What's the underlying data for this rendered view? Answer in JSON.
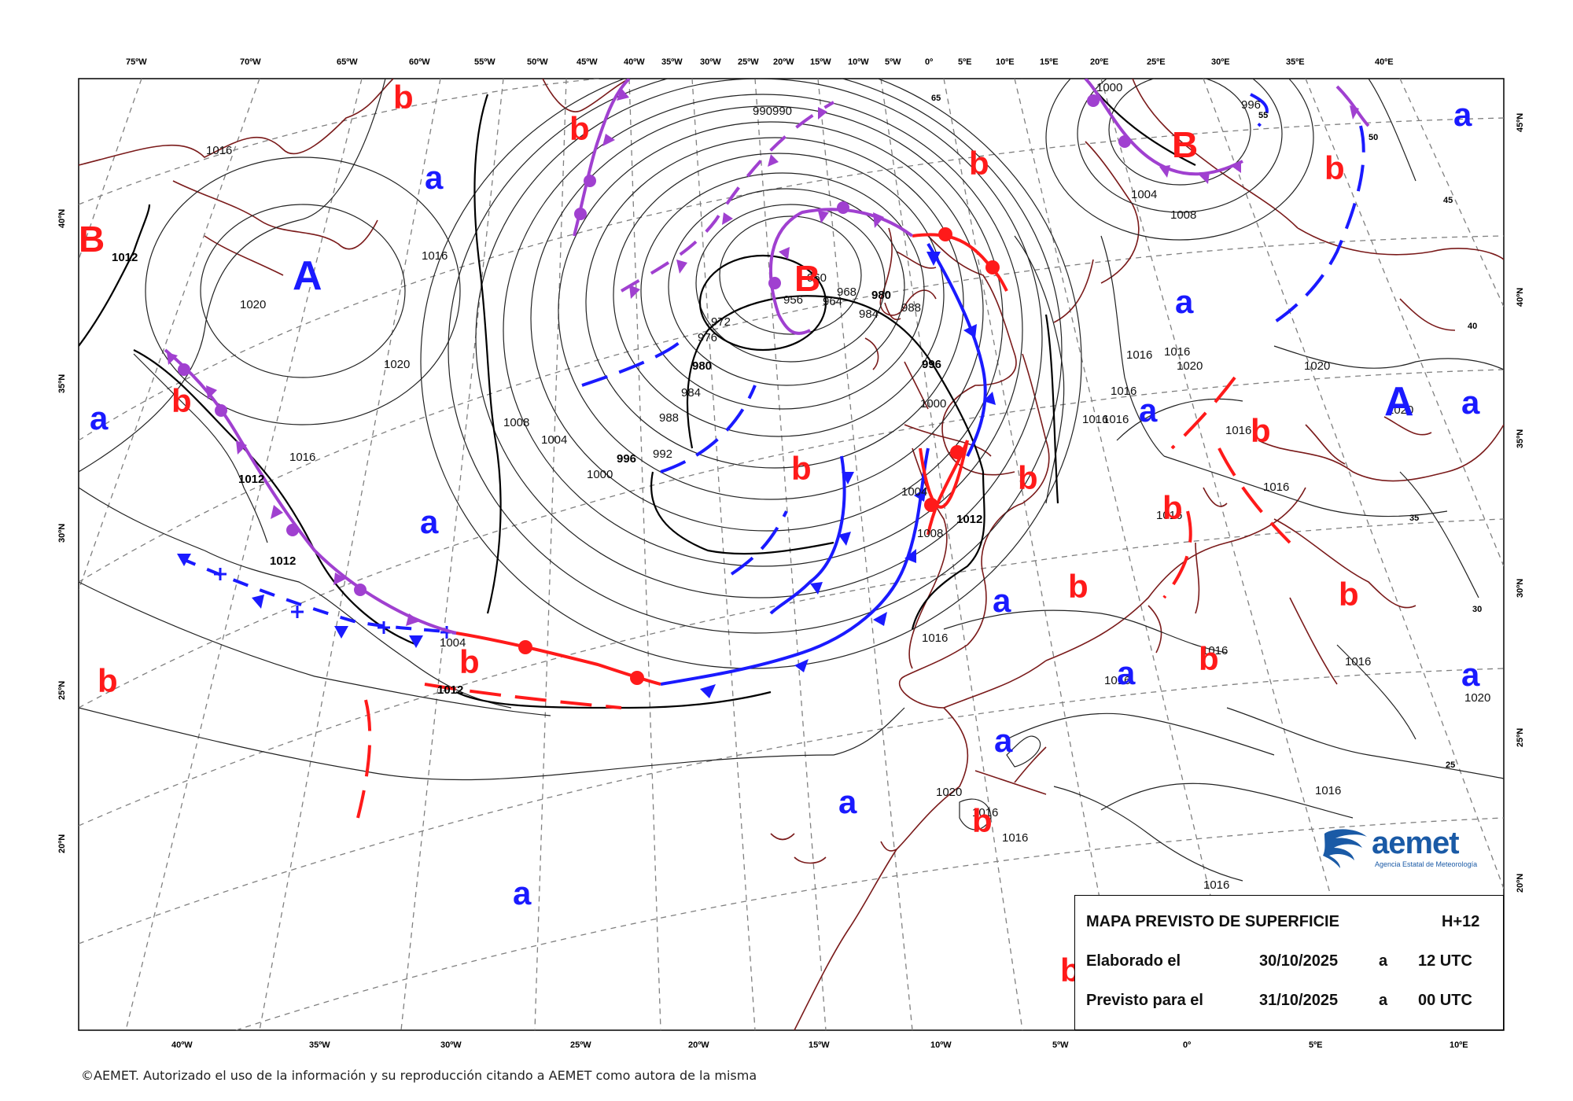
{
  "map": {
    "top_longitudes": [
      "75ºW",
      "70ºW",
      "65ºW",
      "60ºW",
      "55ºW",
      "50ºW",
      "45ºW",
      "40ºW",
      "35ºW",
      "30ºW",
      "25ºW",
      "20ºW",
      "15ºW",
      "10ºW",
      "5ºW",
      "0º",
      "5ºE",
      "10ºE",
      "15ºE",
      "20ºE",
      "25ºE",
      "30ºE",
      "35ºE",
      "40ºE"
    ],
    "bottom_longitudes": [
      "40ºW",
      "35ºW",
      "30ºW",
      "25ºW",
      "20ºW",
      "15ºW",
      "10ºW",
      "5ºW",
      "0º",
      "5ºE",
      "10ºE"
    ],
    "left_latitudes": [
      "40ºN",
      "35ºN",
      "30ºN",
      "25ºN",
      "20ºN"
    ],
    "right_latitudes": [
      "45ºN",
      "40ºN",
      "35ºN",
      "30ºN",
      "25ºN",
      "20ºN"
    ],
    "inner_lat_labels": [
      "65",
      "55",
      "50",
      "45",
      "40",
      "35",
      "30",
      "25"
    ],
    "isobar_labels": [
      "1012",
      "1016",
      "1020",
      "1020",
      "1016",
      "1008",
      "1004",
      "1000",
      "996",
      "992",
      "988",
      "984",
      "980",
      "976",
      "972",
      "968",
      "964",
      "960",
      "956",
      "990",
      "990",
      "980",
      "984",
      "988",
      "996",
      "1000",
      "1004",
      "1008",
      "1012",
      "1012",
      "1012",
      "1012",
      "1004",
      "1016",
      "1016",
      "1016",
      "1016",
      "1016",
      "1016",
      "1020",
      "1016",
      "1016",
      "1016",
      "1020",
      "1016",
      "1020",
      "1016",
      "1016",
      "1016",
      "1000",
      "1004",
      "1008",
      "996",
      "1020",
      "1020",
      "1016",
      "1016",
      "1016",
      "1016"
    ],
    "centers": [
      {
        "letter": "B",
        "kind": "low-major"
      },
      {
        "letter": "B",
        "kind": "low-major"
      },
      {
        "letter": "B",
        "kind": "low-major"
      },
      {
        "letter": "A",
        "kind": "high-major"
      },
      {
        "letter": "A",
        "kind": "high-major"
      },
      {
        "letter": "b",
        "kind": "low-minor"
      },
      {
        "letter": "b",
        "kind": "low-minor"
      },
      {
        "letter": "b",
        "kind": "low-minor"
      },
      {
        "letter": "b",
        "kind": "low-minor"
      },
      {
        "letter": "b",
        "kind": "low-minor"
      },
      {
        "letter": "b",
        "kind": "low-minor"
      },
      {
        "letter": "b",
        "kind": "low-minor"
      },
      {
        "letter": "b",
        "kind": "low-minor"
      },
      {
        "letter": "b",
        "kind": "low-minor"
      },
      {
        "letter": "b",
        "kind": "low-minor"
      },
      {
        "letter": "b",
        "kind": "low-minor"
      },
      {
        "letter": "b",
        "kind": "low-minor"
      },
      {
        "letter": "b",
        "kind": "low-minor"
      },
      {
        "letter": "b",
        "kind": "low-minor"
      },
      {
        "letter": "b",
        "kind": "low-minor"
      },
      {
        "letter": "b",
        "kind": "low-minor"
      },
      {
        "letter": "a",
        "kind": "high-minor"
      },
      {
        "letter": "a",
        "kind": "high-minor"
      },
      {
        "letter": "a",
        "kind": "high-minor"
      },
      {
        "letter": "a",
        "kind": "high-minor"
      },
      {
        "letter": "a",
        "kind": "high-minor"
      },
      {
        "letter": "a",
        "kind": "high-minor"
      },
      {
        "letter": "a",
        "kind": "high-minor"
      },
      {
        "letter": "a",
        "kind": "high-minor"
      },
      {
        "letter": "a",
        "kind": "high-minor"
      },
      {
        "letter": "a",
        "kind": "high-minor"
      },
      {
        "letter": "a",
        "kind": "high-minor"
      },
      {
        "letter": "a",
        "kind": "high-minor"
      },
      {
        "letter": "a",
        "kind": "high-minor"
      }
    ],
    "colors": {
      "cold_front": "#1a1aff",
      "warm_front": "#ff1a1a",
      "occluded_front": "#a040d0",
      "trough": "#ff1a1a",
      "coast": "#7a1a1a",
      "low_label": "#ff1a1a",
      "high_label": "#1a1aff",
      "grid": "#808080",
      "isobar": "#000000"
    }
  },
  "info_box": {
    "title": "MAPA PREVISTO DE SUPERFICIE",
    "horizon": "H+12",
    "row1_label": "Elaborado el",
    "row1_date": "30/10/2025",
    "row1_sep": "a",
    "row1_time": "12 UTC",
    "row2_label": "Previsto para el",
    "row2_date": "31/10/2025",
    "row2_sep": "a",
    "row2_time": "00 UTC"
  },
  "logo": {
    "name": "aemet",
    "subtitle": "Agencia Estatal de Meteorología",
    "icon": "aemet-logo-icon"
  },
  "copyright": "©AEMET. Autorizado el uso de la información y su reproducción citando a AEMET como autora de la misma"
}
